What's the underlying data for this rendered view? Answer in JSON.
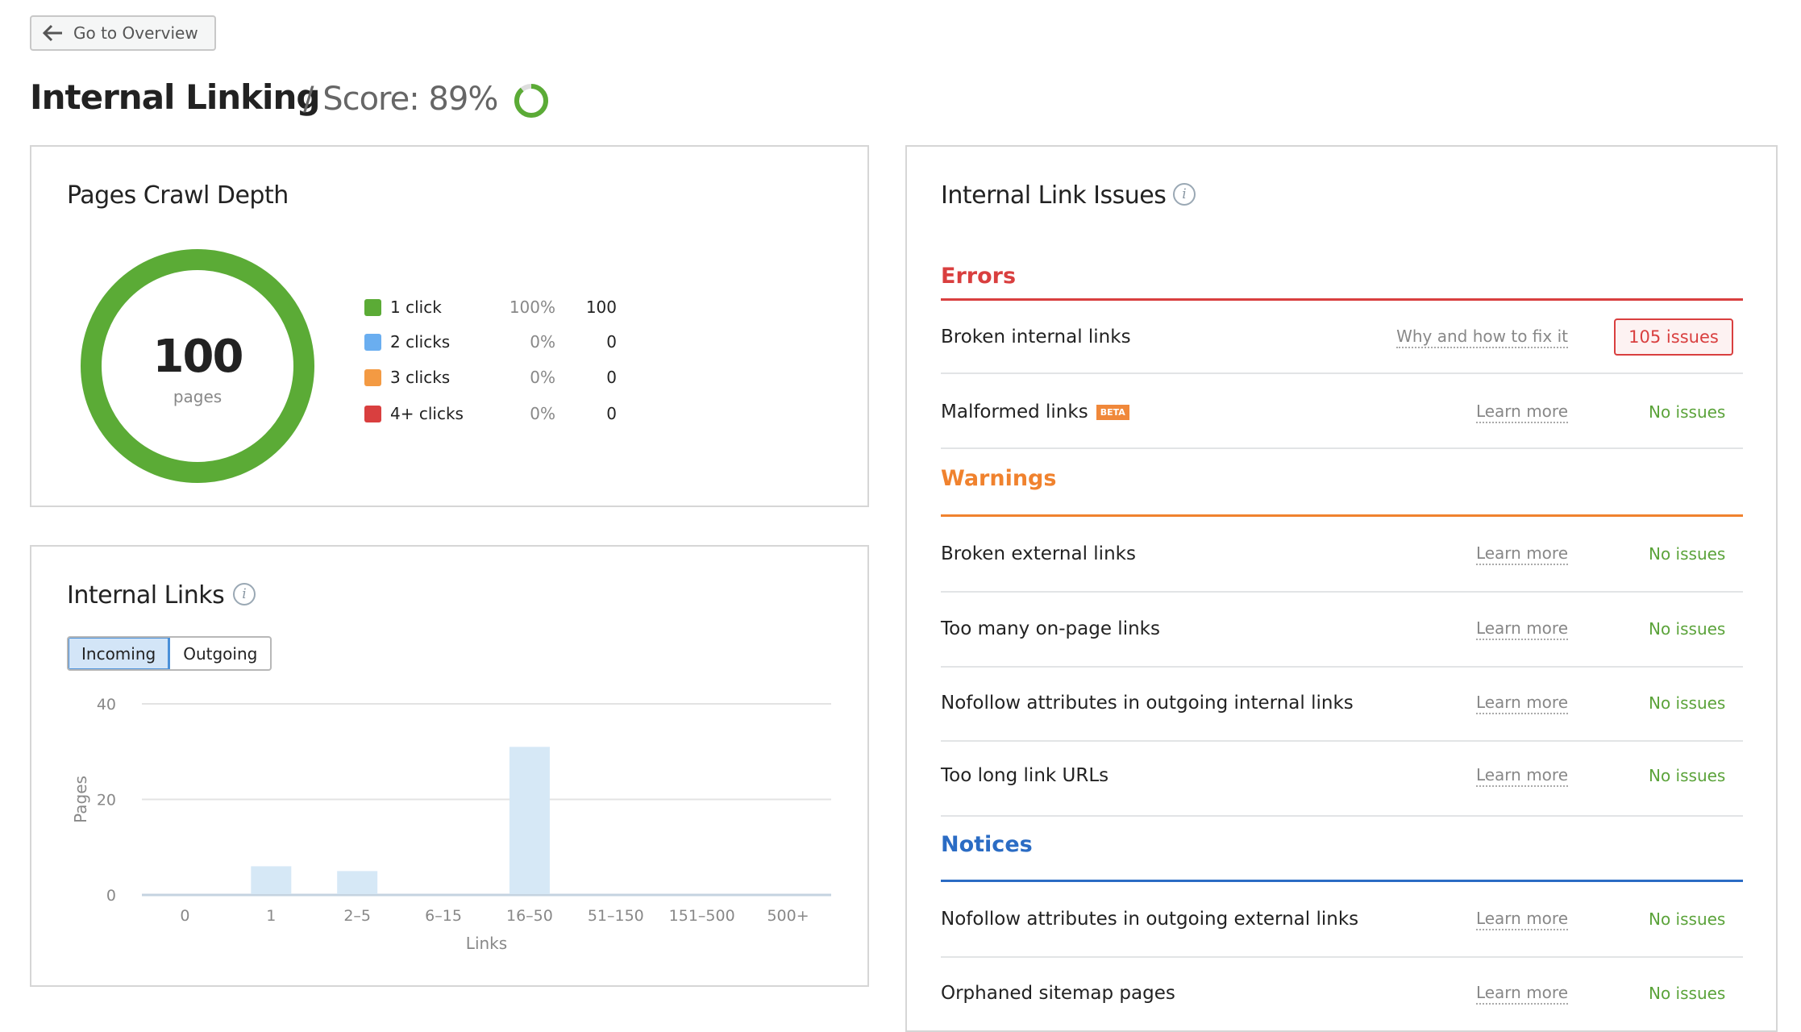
{
  "back_button": {
    "label": "Go to Overview",
    "icon": "arrow-left-icon"
  },
  "header": {
    "title": "Internal Linking",
    "score_label": "/ Score: 89%",
    "score_value": 89,
    "score_color": "#5bab36"
  },
  "crawl_depth": {
    "title": "Pages Crawl Depth",
    "total": "100",
    "total_label": "pages",
    "legend": [
      {
        "label": "1 click",
        "pct": "100%",
        "count": "100",
        "color": "#5bab36"
      },
      {
        "label": "2 clicks",
        "pct": "0%",
        "count": "0",
        "color": "#6aaef0"
      },
      {
        "label": "3 clicks",
        "pct": "0%",
        "count": "0",
        "color": "#f39a43"
      },
      {
        "label": "4+ clicks",
        "pct": "0%",
        "count": "0",
        "color": "#d93f3f"
      }
    ]
  },
  "internal_links": {
    "title": "Internal Links",
    "tabs": [
      {
        "label": "Incoming",
        "active": true
      },
      {
        "label": "Outgoing",
        "active": false
      }
    ]
  },
  "chart_data": {
    "type": "bar",
    "categories": [
      "0",
      "1",
      "2–5",
      "6–15",
      "16–50",
      "51–150",
      "151–500",
      "500+"
    ],
    "values": [
      0,
      6,
      5,
      0,
      31,
      0,
      0,
      0
    ],
    "xlabel": "Links",
    "ylabel": "Pages",
    "ylim": [
      0,
      40
    ],
    "yticks": [
      "0",
      "20",
      "40"
    ],
    "grid": true,
    "bar_color": "#d6e8f6"
  },
  "issues": {
    "title": "Internal Link Issues",
    "sections": [
      {
        "name": "Errors",
        "color": "#d93f3f",
        "rows": [
          {
            "label": "Broken internal links",
            "link": "Why and how to fix it",
            "status": "105 issues",
            "is_issue": true
          },
          {
            "label": "Malformed links",
            "badge": "BETA",
            "link": "Learn more",
            "status": "No issues"
          }
        ]
      },
      {
        "name": "Warnings",
        "color": "#f0822e",
        "rows": [
          {
            "label": "Broken external links",
            "link": "Learn more",
            "status": "No issues"
          },
          {
            "label": "Too many on-page links",
            "link": "Learn more",
            "status": "No issues"
          },
          {
            "label": "Nofollow attributes in outgoing internal links",
            "link": "Learn more",
            "status": "No issues"
          },
          {
            "label": "Too long link URLs",
            "link": "Learn more",
            "status": "No issues"
          }
        ]
      },
      {
        "name": "Notices",
        "color": "#2b6cc4",
        "rows": [
          {
            "label": "Nofollow attributes in outgoing external links",
            "link": "Learn more",
            "status": "No issues"
          },
          {
            "label": "Orphaned sitemap pages",
            "link": "Learn more",
            "status": "No issues"
          }
        ]
      }
    ]
  }
}
